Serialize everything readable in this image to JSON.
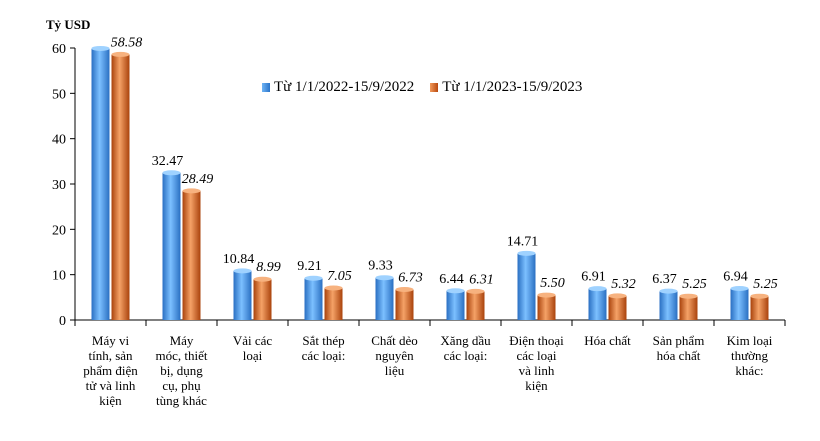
{
  "chart_data": {
    "type": "bar",
    "ylabel": "Tỷ USD",
    "ylim": [
      0,
      60
    ],
    "yticks": [
      0,
      10,
      20,
      30,
      40,
      50,
      60
    ],
    "legend_position": "top-center",
    "categories": [
      "Máy vi\ntính, sản\nphẩm điện\ntử và linh\nkiện",
      "Máy\nmóc, thiết\nbị, dụng\ncụ, phụ\ntùng khác",
      "Vải các\nloại",
      "Sắt thép\ncác loại:",
      "Chất dẻo\nnguyên\nliệu",
      "Xăng dầu\ncác loại:",
      "Điện thoại\ncác loại\nvà linh\nkiện",
      "Hóa chất",
      "Sản phẩm\nhóa chất",
      "Kim loại\nthường\nkhác:"
    ],
    "series": [
      {
        "name": "Từ 1/1/2022-15/9/2022",
        "color": "#3b8fe0",
        "values": [
          59.9,
          32.47,
          10.84,
          9.21,
          9.33,
          6.44,
          14.71,
          6.91,
          6.37,
          6.94
        ],
        "labels": [
          "",
          "32.47",
          "10.84",
          "9.21",
          "9.33",
          "6.44",
          "14.71",
          "6.91",
          "6.37",
          "6.94"
        ]
      },
      {
        "name": "Từ 1/1/2023-15/9/2023",
        "color": "#e0651e",
        "values": [
          58.58,
          28.49,
          8.99,
          7.05,
          6.73,
          6.31,
          5.5,
          5.32,
          5.25,
          5.25
        ],
        "labels": [
          "58.58",
          "28.49",
          "8.99",
          "7.05",
          "6.73",
          "6.31",
          "5.50",
          "5.32",
          "5.25",
          "5.25"
        ]
      }
    ]
  }
}
